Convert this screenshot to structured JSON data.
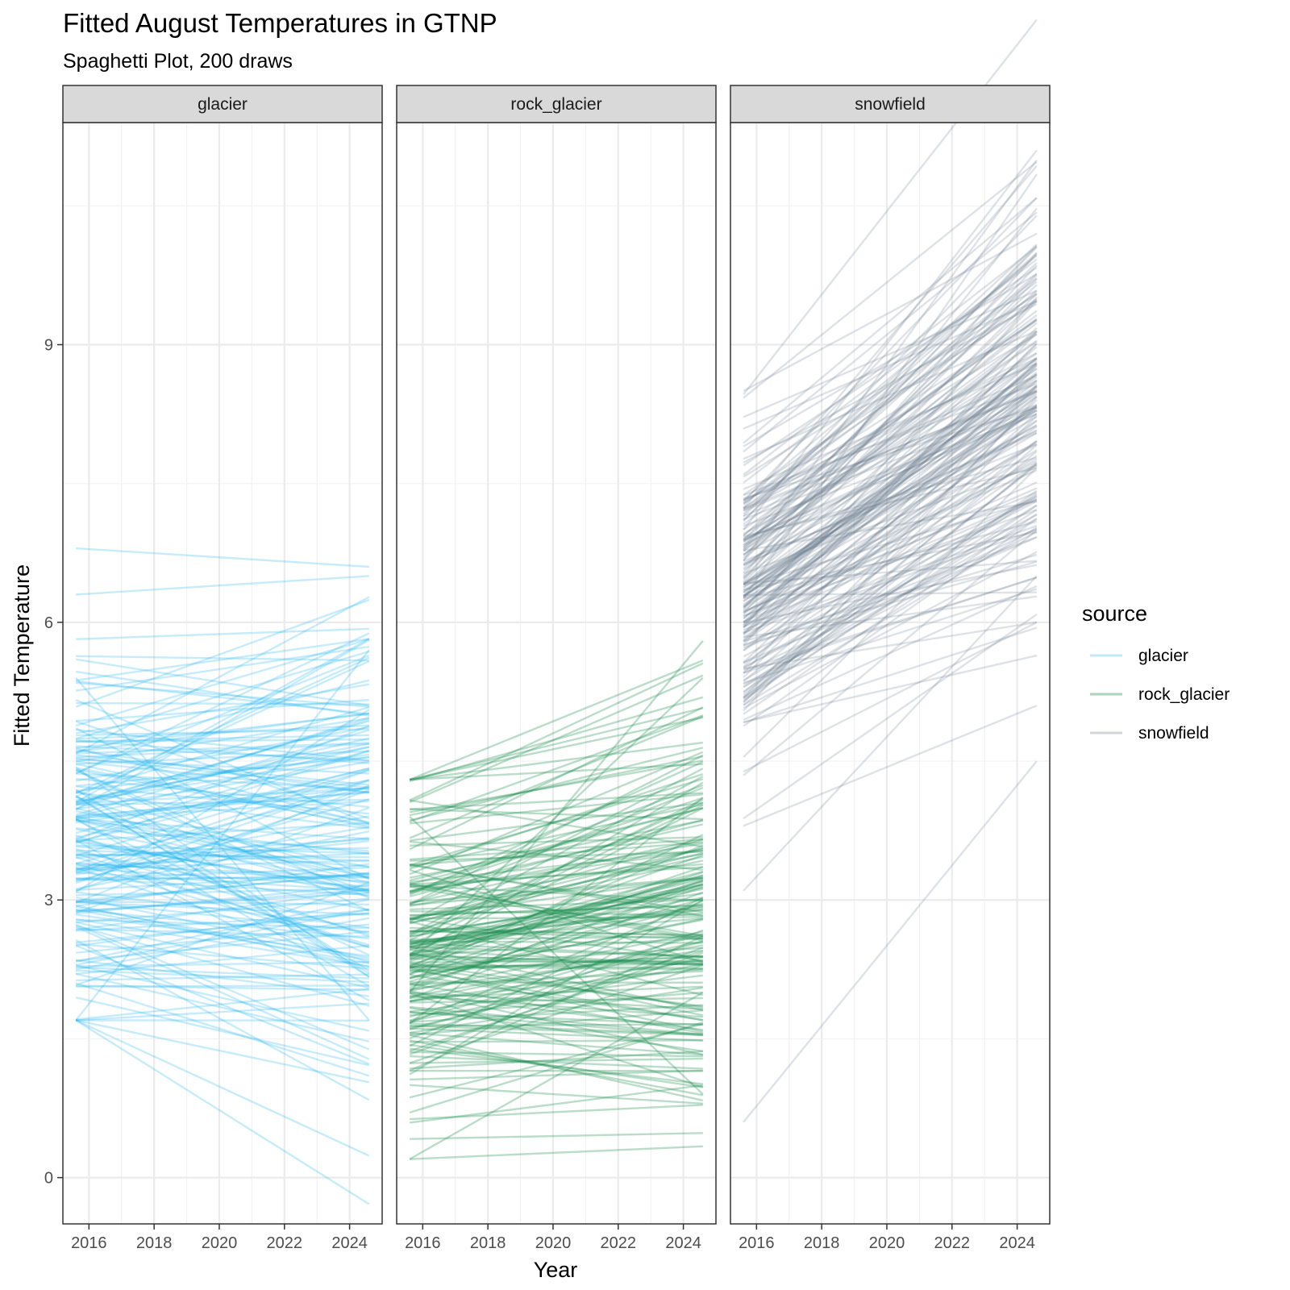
{
  "chart_data": {
    "type": "line",
    "title": "Fitted August Temperatures in GTNP",
    "subtitle": "Spaghetti Plot, 200 draws",
    "xlabel": "Year",
    "ylabel": "Fitted Temperature",
    "xlim": [
      2015.2,
      2025.0
    ],
    "ylim": [
      -0.5,
      11.4
    ],
    "x_ticks": [
      2016,
      2018,
      2020,
      2022,
      2024
    ],
    "y_ticks": [
      0,
      3,
      6,
      9
    ],
    "x_range_of_lines": [
      2015.6,
      2024.6
    ],
    "n_draws": 200,
    "grid": true,
    "facet_by": "source",
    "legend": {
      "title": "source",
      "position": "right",
      "entries": [
        "glacier",
        "rock_glacier",
        "snowfield"
      ]
    },
    "panels": [
      {
        "name": "glacier",
        "color": "#1DB4EE",
        "legend_color": "#BFE8F8",
        "opacity": 0.25,
        "start": {
          "mean": 3.6,
          "sd": 0.95,
          "min": 1.7,
          "max": 6.8
        },
        "slope_per_year": {
          "mean": 0.0,
          "sd": 0.08
        },
        "examples": [
          {
            "x": [
              2015.6,
              2024.6
            ],
            "y": [
              6.8,
              6.6
            ]
          },
          {
            "x": [
              2015.6,
              2024.6
            ],
            "y": [
              6.3,
              6.5
            ]
          },
          {
            "x": [
              2015.6,
              2024.6
            ],
            "y": [
              1.7,
              5.7
            ]
          },
          {
            "x": [
              2015.6,
              2024.6
            ],
            "y": [
              2.1,
              1.1
            ]
          },
          {
            "x": [
              2015.6,
              2024.6
            ],
            "y": [
              5.6,
              5.1
            ]
          },
          {
            "x": [
              2015.6,
              2024.6
            ],
            "y": [
              5.4,
              1.7
            ]
          }
        ]
      },
      {
        "name": "rock_glacier",
        "color": "#1A8F4E",
        "legend_color": "#A8D6BC",
        "opacity": 0.3,
        "start": {
          "mean": 2.5,
          "sd": 0.8,
          "min": 0.2,
          "max": 4.3
        },
        "slope_per_year": {
          "mean": 0.05,
          "sd": 0.07
        },
        "examples": [
          {
            "x": [
              2015.6,
              2024.6
            ],
            "y": [
              0.2,
              2.0
            ]
          },
          {
            "x": [
              2015.6,
              2024.6
            ],
            "y": [
              2.0,
              5.8
            ]
          },
          {
            "x": [
              2015.6,
              2024.6
            ],
            "y": [
              4.3,
              4.7
            ]
          },
          {
            "x": [
              2015.6,
              2024.6
            ],
            "y": [
              1.0,
              0.8
            ]
          },
          {
            "x": [
              2015.6,
              2024.6
            ],
            "y": [
              2.4,
              5.4
            ]
          },
          {
            "x": [
              2015.6,
              2024.6
            ],
            "y": [
              3.9,
              0.9
            ]
          }
        ]
      },
      {
        "name": "snowfield",
        "color": "#6B7B8F",
        "legend_color": "#D3D5DA",
        "opacity": 0.22,
        "start": {
          "mean": 6.3,
          "sd": 0.9,
          "min": 0.6,
          "max": 8.5
        },
        "slope_per_year": {
          "mean": 0.24,
          "sd": 0.09
        },
        "examples": [
          {
            "x": [
              2015.6,
              2024.6
            ],
            "y": [
              0.6,
              4.5
            ]
          },
          {
            "x": [
              2015.6,
              2024.6
            ],
            "y": [
              3.8,
              5.1
            ]
          },
          {
            "x": [
              2015.6,
              2024.6
            ],
            "y": [
              8.5,
              10.2
            ]
          },
          {
            "x": [
              2015.6,
              2024.6
            ],
            "y": [
              5.5,
              6.0
            ]
          },
          {
            "x": [
              2015.6,
              2024.6
            ],
            "y": [
              7.0,
              11.1
            ]
          },
          {
            "x": [
              2015.6,
              2024.6
            ],
            "y": [
              3.1,
              6.5
            ]
          }
        ]
      }
    ]
  }
}
